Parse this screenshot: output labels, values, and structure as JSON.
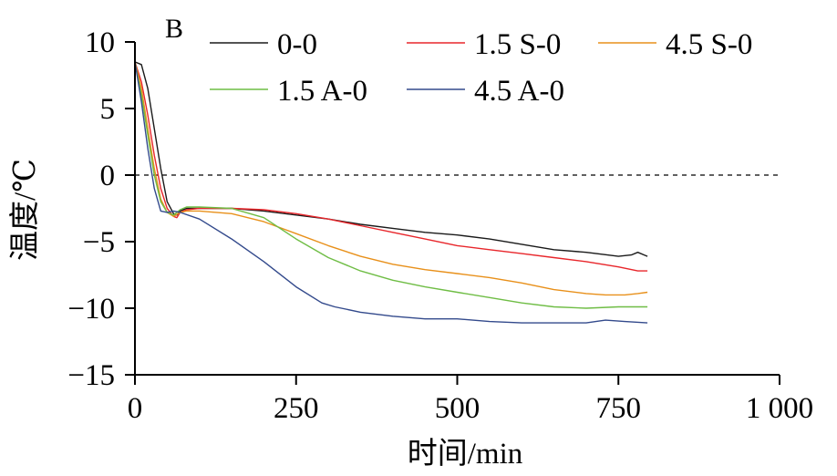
{
  "chart_data": {
    "type": "line",
    "panel_label": "B",
    "xlabel": "时间/min",
    "ylabel": "温度/℃",
    "xlim": [
      0,
      1000
    ],
    "ylim": [
      -15,
      10
    ],
    "x_ticks": [
      0,
      250,
      500,
      750,
      1000
    ],
    "x_tick_labels": [
      "0",
      "250",
      "500",
      "750",
      "1 000"
    ],
    "y_ticks": [
      10,
      5,
      0,
      -5,
      -10,
      -15
    ],
    "y_tick_labels": [
      "10",
      "5",
      "0",
      "−5",
      "−10",
      "−15"
    ],
    "reference_line": {
      "y": 0,
      "style": "dashed"
    },
    "legend_position": "top",
    "series": [
      {
        "name": "0-0",
        "color": "#1a1a1a",
        "x": [
          0,
          10,
          20,
          30,
          40,
          50,
          60,
          65,
          70,
          80,
          100,
          150,
          200,
          250,
          300,
          350,
          400,
          450,
          500,
          550,
          600,
          650,
          700,
          750,
          770,
          780,
          790,
          795
        ],
        "y": [
          8.5,
          8.3,
          6.5,
          3.5,
          0.5,
          -2.0,
          -2.9,
          -3.0,
          -2.7,
          -2.5,
          -2.5,
          -2.5,
          -2.7,
          -3.0,
          -3.3,
          -3.7,
          -4.0,
          -4.3,
          -4.5,
          -4.8,
          -5.2,
          -5.6,
          -5.8,
          -6.1,
          -6.0,
          -5.8,
          -6.0,
          -6.1
        ]
      },
      {
        "name": "1.5 S-0",
        "color": "#e8262b",
        "x": [
          0,
          10,
          20,
          30,
          40,
          50,
          60,
          65,
          70,
          80,
          100,
          150,
          200,
          250,
          300,
          350,
          400,
          450,
          500,
          550,
          600,
          650,
          700,
          750,
          780,
          795
        ],
        "y": [
          8.5,
          7.0,
          4.5,
          1.5,
          -1.0,
          -2.5,
          -3.1,
          -3.2,
          -2.8,
          -2.6,
          -2.5,
          -2.5,
          -2.6,
          -2.9,
          -3.3,
          -3.8,
          -4.3,
          -4.8,
          -5.3,
          -5.6,
          -5.9,
          -6.2,
          -6.5,
          -6.9,
          -7.2,
          -7.2
        ]
      },
      {
        "name": "4.5 S-0",
        "color": "#e8901a",
        "x": [
          0,
          10,
          20,
          30,
          40,
          50,
          60,
          70,
          80,
          100,
          150,
          200,
          250,
          300,
          350,
          400,
          450,
          500,
          550,
          600,
          650,
          700,
          730,
          760,
          780,
          795
        ],
        "y": [
          8.5,
          6.5,
          3.5,
          0.5,
          -1.8,
          -2.8,
          -3.1,
          -2.8,
          -2.7,
          -2.7,
          -2.9,
          -3.5,
          -4.4,
          -5.3,
          -6.1,
          -6.7,
          -7.1,
          -7.4,
          -7.7,
          -8.1,
          -8.6,
          -8.9,
          -9.0,
          -9.0,
          -8.9,
          -8.8
        ]
      },
      {
        "name": "1.5 A-0",
        "color": "#6fbd45",
        "x": [
          0,
          10,
          20,
          30,
          40,
          50,
          60,
          70,
          80,
          100,
          150,
          200,
          250,
          300,
          350,
          400,
          450,
          500,
          550,
          600,
          650,
          700,
          750,
          795
        ],
        "y": [
          8.5,
          6.0,
          3.0,
          0.0,
          -2.0,
          -2.8,
          -3.0,
          -2.6,
          -2.4,
          -2.4,
          -2.5,
          -3.2,
          -4.8,
          -6.2,
          -7.2,
          -7.9,
          -8.4,
          -8.8,
          -9.2,
          -9.6,
          -9.9,
          -10.0,
          -9.9,
          -9.9
        ]
      },
      {
        "name": "4.5 A-0",
        "color": "#334a8c",
        "x": [
          0,
          10,
          20,
          30,
          40,
          50,
          60,
          70,
          100,
          150,
          200,
          250,
          290,
          310,
          350,
          400,
          450,
          500,
          550,
          600,
          650,
          700,
          730,
          760,
          795
        ],
        "y": [
          8.5,
          5.5,
          2.0,
          -1.0,
          -2.7,
          -2.8,
          -2.7,
          -2.8,
          -3.3,
          -4.8,
          -6.5,
          -8.4,
          -9.6,
          -9.9,
          -10.3,
          -10.6,
          -10.8,
          -10.8,
          -11.0,
          -11.1,
          -11.1,
          -11.1,
          -10.9,
          -11.0,
          -11.1
        ]
      }
    ]
  }
}
